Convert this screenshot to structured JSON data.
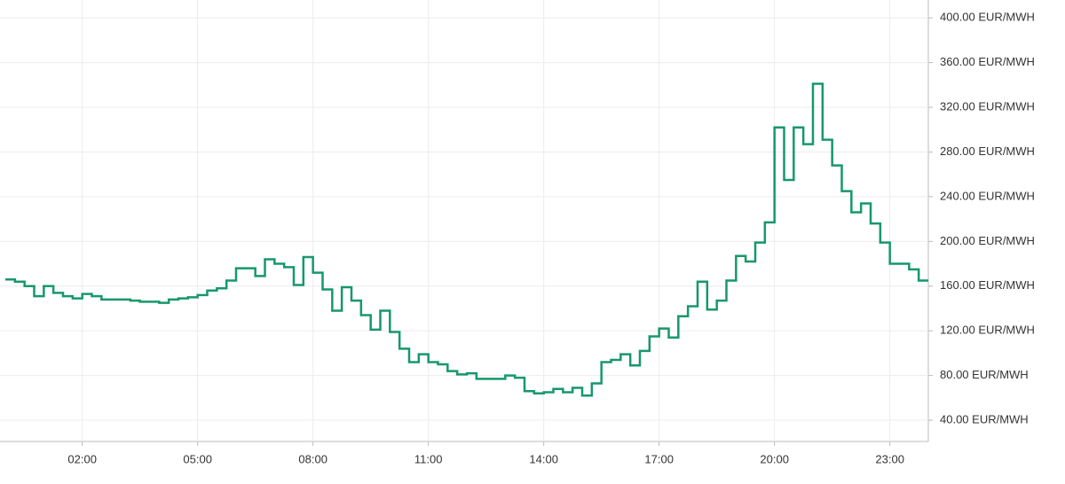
{
  "chart_data": {
    "type": "step",
    "x": [
      0,
      0.25,
      0.5,
      0.75,
      1,
      1.25,
      1.5,
      1.75,
      2,
      2.25,
      2.5,
      2.75,
      3,
      3.25,
      3.5,
      3.75,
      4,
      4.25,
      4.5,
      4.75,
      5,
      5.25,
      5.5,
      5.75,
      6,
      6.25,
      6.5,
      6.75,
      7,
      7.25,
      7.5,
      7.75,
      8,
      8.25,
      8.5,
      8.75,
      9,
      9.25,
      9.5,
      9.75,
      10,
      10.25,
      10.5,
      10.75,
      11,
      11.25,
      11.5,
      11.75,
      12,
      12.25,
      12.5,
      12.75,
      13,
      13.25,
      13.5,
      13.75,
      14,
      14.25,
      14.5,
      14.75,
      15,
      15.25,
      15.5,
      15.75,
      16,
      16.25,
      16.5,
      16.75,
      17,
      17.25,
      17.5,
      17.75,
      18,
      18.25,
      18.5,
      18.75,
      19,
      19.25,
      19.5,
      19.75,
      20,
      20.25,
      20.5,
      20.75,
      21,
      21.25,
      21.5,
      21.75,
      22,
      22.25,
      22.5,
      22.75,
      23,
      23.25,
      23.5,
      23.75
    ],
    "series": [
      {
        "color": "#17986a",
        "values": [
          166,
          164,
          160,
          151,
          160,
          154,
          151,
          149,
          153,
          151,
          148,
          148,
          148,
          147,
          146,
          146,
          145,
          148,
          149,
          150,
          152,
          156,
          158,
          165,
          176,
          176,
          169,
          184,
          180,
          177,
          161,
          186,
          172,
          157,
          138,
          159,
          147,
          134,
          121,
          138,
          119,
          104,
          92,
          99,
          92,
          90,
          84,
          81,
          82,
          77,
          77,
          77,
          80,
          78,
          66,
          64,
          65,
          68,
          65,
          69,
          62,
          73,
          92,
          94,
          99,
          89,
          102,
          115,
          122,
          114,
          133,
          142,
          164,
          139,
          147,
          165,
          187,
          182,
          199,
          217,
          302,
          255,
          302,
          287,
          341,
          291,
          268,
          245,
          226,
          234,
          216,
          199,
          180,
          180,
          175,
          165
        ]
      }
    ],
    "xlim": [
      0,
      24
    ],
    "xticks": [
      {
        "value": 2,
        "label": "02:00"
      },
      {
        "value": 5,
        "label": "05:00"
      },
      {
        "value": 8,
        "label": "08:00"
      },
      {
        "value": 11,
        "label": "11:00"
      },
      {
        "value": 14,
        "label": "14:00"
      },
      {
        "value": 17,
        "label": "17:00"
      },
      {
        "value": 20,
        "label": "20:00"
      },
      {
        "value": 23,
        "label": "23:00"
      }
    ],
    "ylim": [
      21,
      416
    ],
    "yticks": [
      {
        "value": 40,
        "label": "40.00 EUR/MWH"
      },
      {
        "value": 80,
        "label": "80.00 EUR/MWH"
      },
      {
        "value": 120,
        "label": "120.00 EUR/MWH"
      },
      {
        "value": 160,
        "label": "160.00 EUR/MWH"
      },
      {
        "value": 200,
        "label": "200.00 EUR/MWH"
      },
      {
        "value": 240,
        "label": "240.00 EUR/MWH"
      },
      {
        "value": 280,
        "label": "280.00 EUR/MWH"
      },
      {
        "value": 320,
        "label": "320.00 EUR/MWH"
      },
      {
        "value": 360,
        "label": "360.00 EUR/MWH"
      },
      {
        "value": 400,
        "label": "400.00 EUR/MWH"
      }
    ],
    "grid": true
  }
}
